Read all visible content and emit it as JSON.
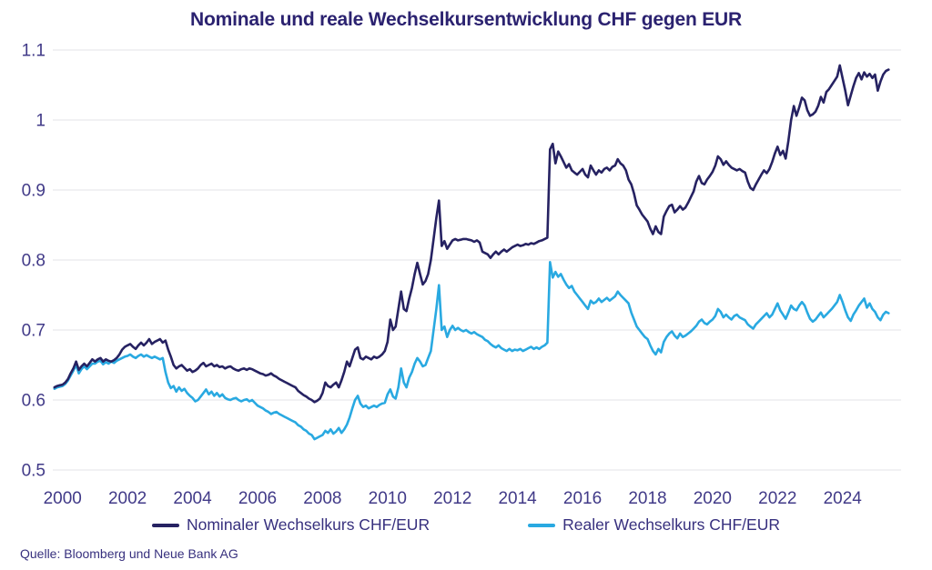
{
  "title": "Nominale und reale Wechselkursentwicklung CHF gegen EUR",
  "source": "Quelle: Bloomberg und Neue Bank AG",
  "colors": {
    "background": "#ffffff",
    "title_text": "#2b2270",
    "axis_text": "#413a88",
    "legend_text": "#37307e",
    "grid": "#e3e3e7",
    "nominal_line": "#262262",
    "real_line": "#29a9e1"
  },
  "legend": [
    {
      "label": "Nominaler Wechselkurs CHF/EUR"
    },
    {
      "label": "Realer Wechselkurs CHF/EUR"
    }
  ],
  "chart_data": {
    "type": "line",
    "title": "Nominale und reale Wechselkursentwicklung CHF gegen EUR",
    "xlabel": "",
    "ylabel": "",
    "xlim": [
      1999.7,
      2025.8
    ],
    "ylim": [
      0.5,
      1.1
    ],
    "grid": "horizontal",
    "legend_position": "bottom",
    "x_start": 1999.75,
    "x_step_years": 0.0833333,
    "x_ticks": [
      {
        "label": "2000",
        "value": 2000
      },
      {
        "label": "2002",
        "value": 2002
      },
      {
        "label": "2004",
        "value": 2004
      },
      {
        "label": "2006",
        "value": 2006
      },
      {
        "label": "2008",
        "value": 2008
      },
      {
        "label": "2010",
        "value": 2010
      },
      {
        "label": "2012",
        "value": 2012
      },
      {
        "label": "2014",
        "value": 2014
      },
      {
        "label": "2016",
        "value": 2016
      },
      {
        "label": "2018",
        "value": 2018
      },
      {
        "label": "2020",
        "value": 2020
      },
      {
        "label": "2022",
        "value": 2022
      },
      {
        "label": "2024",
        "value": 2024
      }
    ],
    "y_ticks": [
      {
        "label": "1.1",
        "value": 1.1
      },
      {
        "label": "1",
        "value": 1.0
      },
      {
        "label": "0.9",
        "value": 0.9
      },
      {
        "label": "0.8",
        "value": 0.8
      },
      {
        "label": "0.7",
        "value": 0.7
      },
      {
        "label": "0.6",
        "value": 0.6
      },
      {
        "label": "0.5",
        "value": 0.5
      }
    ],
    "series": [
      {
        "name": "Nominaler Wechselkurs CHF/EUR",
        "color": "#262262",
        "values": [
          0.618,
          0.62,
          0.621,
          0.622,
          0.625,
          0.63,
          0.638,
          0.645,
          0.655,
          0.643,
          0.648,
          0.652,
          0.648,
          0.653,
          0.658,
          0.655,
          0.658,
          0.66,
          0.655,
          0.658,
          0.656,
          0.655,
          0.657,
          0.66,
          0.665,
          0.672,
          0.676,
          0.678,
          0.68,
          0.676,
          0.673,
          0.678,
          0.682,
          0.678,
          0.682,
          0.687,
          0.68,
          0.683,
          0.685,
          0.687,
          0.682,
          0.685,
          0.672,
          0.662,
          0.65,
          0.645,
          0.648,
          0.65,
          0.646,
          0.642,
          0.644,
          0.64,
          0.642,
          0.645,
          0.65,
          0.653,
          0.648,
          0.65,
          0.652,
          0.648,
          0.65,
          0.647,
          0.648,
          0.645,
          0.647,
          0.648,
          0.645,
          0.643,
          0.642,
          0.644,
          0.645,
          0.643,
          0.645,
          0.644,
          0.642,
          0.64,
          0.638,
          0.637,
          0.635,
          0.636,
          0.638,
          0.635,
          0.633,
          0.63,
          0.628,
          0.626,
          0.624,
          0.622,
          0.62,
          0.618,
          0.613,
          0.61,
          0.607,
          0.605,
          0.602,
          0.6,
          0.597,
          0.599,
          0.602,
          0.61,
          0.625,
          0.62,
          0.618,
          0.622,
          0.625,
          0.618,
          0.628,
          0.64,
          0.655,
          0.648,
          0.66,
          0.672,
          0.675,
          0.66,
          0.658,
          0.662,
          0.66,
          0.658,
          0.662,
          0.66,
          0.662,
          0.665,
          0.67,
          0.683,
          0.715,
          0.7,
          0.705,
          0.73,
          0.755,
          0.73,
          0.727,
          0.745,
          0.76,
          0.78,
          0.796,
          0.78,
          0.765,
          0.77,
          0.78,
          0.8,
          0.83,
          0.86,
          0.885,
          0.82,
          0.827,
          0.816,
          0.822,
          0.828,
          0.83,
          0.828,
          0.829,
          0.83,
          0.83,
          0.829,
          0.828,
          0.826,
          0.828,
          0.825,
          0.812,
          0.81,
          0.808,
          0.803,
          0.808,
          0.812,
          0.808,
          0.812,
          0.815,
          0.812,
          0.815,
          0.818,
          0.82,
          0.822,
          0.82,
          0.821,
          0.823,
          0.822,
          0.824,
          0.823,
          0.825,
          0.827,
          0.828,
          0.83,
          0.832,
          0.958,
          0.966,
          0.938,
          0.955,
          0.948,
          0.94,
          0.932,
          0.937,
          0.928,
          0.925,
          0.922,
          0.926,
          0.93,
          0.922,
          0.918,
          0.935,
          0.928,
          0.922,
          0.928,
          0.925,
          0.93,
          0.932,
          0.928,
          0.933,
          0.935,
          0.944,
          0.938,
          0.935,
          0.928,
          0.915,
          0.908,
          0.895,
          0.878,
          0.872,
          0.865,
          0.86,
          0.855,
          0.845,
          0.837,
          0.848,
          0.84,
          0.837,
          0.862,
          0.87,
          0.877,
          0.879,
          0.868,
          0.872,
          0.877,
          0.872,
          0.875,
          0.882,
          0.89,
          0.898,
          0.912,
          0.92,
          0.91,
          0.908,
          0.915,
          0.92,
          0.926,
          0.935,
          0.948,
          0.944,
          0.936,
          0.941,
          0.936,
          0.932,
          0.93,
          0.928,
          0.93,
          0.927,
          0.925,
          0.912,
          0.903,
          0.9,
          0.908,
          0.915,
          0.922,
          0.928,
          0.924,
          0.93,
          0.94,
          0.952,
          0.962,
          0.95,
          0.956,
          0.945,
          0.97,
          1.0,
          1.02,
          1.006,
          1.018,
          1.032,
          1.028,
          1.014,
          1.006,
          1.008,
          1.012,
          1.02,
          1.033,
          1.025,
          1.04,
          1.044,
          1.05,
          1.056,
          1.062,
          1.078,
          1.06,
          1.042,
          1.021,
          1.035,
          1.048,
          1.06,
          1.067,
          1.058,
          1.068,
          1.062,
          1.066,
          1.06,
          1.065,
          1.042,
          1.055,
          1.065,
          1.07,
          1.072
        ]
      },
      {
        "name": "Realer Wechselkurs CHF/EUR",
        "color": "#29a9e1",
        "values": [
          0.616,
          0.618,
          0.619,
          0.62,
          0.623,
          0.628,
          0.635,
          0.642,
          0.65,
          0.638,
          0.644,
          0.648,
          0.644,
          0.648,
          0.652,
          0.652,
          0.655,
          0.656,
          0.651,
          0.654,
          0.652,
          0.655,
          0.653,
          0.656,
          0.658,
          0.66,
          0.662,
          0.663,
          0.665,
          0.662,
          0.66,
          0.663,
          0.665,
          0.662,
          0.664,
          0.662,
          0.66,
          0.662,
          0.66,
          0.658,
          0.66,
          0.64,
          0.625,
          0.617,
          0.62,
          0.612,
          0.618,
          0.613,
          0.616,
          0.61,
          0.606,
          0.603,
          0.598,
          0.6,
          0.605,
          0.61,
          0.615,
          0.608,
          0.612,
          0.606,
          0.61,
          0.605,
          0.608,
          0.603,
          0.601,
          0.6,
          0.602,
          0.603,
          0.6,
          0.598,
          0.6,
          0.601,
          0.598,
          0.6,
          0.596,
          0.592,
          0.59,
          0.588,
          0.585,
          0.583,
          0.58,
          0.582,
          0.583,
          0.58,
          0.578,
          0.576,
          0.574,
          0.572,
          0.57,
          0.568,
          0.564,
          0.562,
          0.558,
          0.556,
          0.552,
          0.55,
          0.544,
          0.546,
          0.548,
          0.55,
          0.556,
          0.553,
          0.558,
          0.552,
          0.555,
          0.56,
          0.553,
          0.558,
          0.565,
          0.575,
          0.588,
          0.6,
          0.606,
          0.595,
          0.59,
          0.592,
          0.588,
          0.59,
          0.592,
          0.59,
          0.593,
          0.595,
          0.596,
          0.608,
          0.615,
          0.605,
          0.602,
          0.618,
          0.645,
          0.625,
          0.618,
          0.632,
          0.64,
          0.652,
          0.66,
          0.655,
          0.648,
          0.65,
          0.66,
          0.67,
          0.7,
          0.73,
          0.764,
          0.7,
          0.705,
          0.69,
          0.7,
          0.706,
          0.7,
          0.703,
          0.7,
          0.698,
          0.7,
          0.697,
          0.695,
          0.697,
          0.694,
          0.692,
          0.69,
          0.686,
          0.684,
          0.68,
          0.677,
          0.675,
          0.678,
          0.674,
          0.672,
          0.67,
          0.673,
          0.67,
          0.672,
          0.671,
          0.673,
          0.67,
          0.672,
          0.674,
          0.676,
          0.673,
          0.675,
          0.673,
          0.676,
          0.678,
          0.682,
          0.797,
          0.775,
          0.783,
          0.776,
          0.78,
          0.772,
          0.765,
          0.76,
          0.763,
          0.755,
          0.75,
          0.745,
          0.74,
          0.735,
          0.73,
          0.742,
          0.738,
          0.74,
          0.745,
          0.74,
          0.743,
          0.746,
          0.742,
          0.745,
          0.748,
          0.755,
          0.75,
          0.746,
          0.742,
          0.738,
          0.725,
          0.715,
          0.705,
          0.7,
          0.695,
          0.69,
          0.687,
          0.678,
          0.67,
          0.665,
          0.673,
          0.668,
          0.683,
          0.69,
          0.695,
          0.698,
          0.692,
          0.688,
          0.695,
          0.69,
          0.692,
          0.695,
          0.698,
          0.702,
          0.706,
          0.712,
          0.715,
          0.71,
          0.708,
          0.712,
          0.715,
          0.72,
          0.73,
          0.726,
          0.718,
          0.722,
          0.718,
          0.715,
          0.72,
          0.722,
          0.718,
          0.716,
          0.714,
          0.708,
          0.705,
          0.702,
          0.708,
          0.712,
          0.716,
          0.72,
          0.724,
          0.718,
          0.722,
          0.73,
          0.738,
          0.728,
          0.722,
          0.716,
          0.725,
          0.735,
          0.73,
          0.728,
          0.735,
          0.74,
          0.735,
          0.725,
          0.716,
          0.712,
          0.715,
          0.72,
          0.725,
          0.718,
          0.722,
          0.726,
          0.73,
          0.735,
          0.74,
          0.75,
          0.74,
          0.728,
          0.718,
          0.713,
          0.722,
          0.728,
          0.735,
          0.74,
          0.745,
          0.732,
          0.738,
          0.73,
          0.726,
          0.718,
          0.714,
          0.722,
          0.726,
          0.724
        ]
      }
    ]
  }
}
